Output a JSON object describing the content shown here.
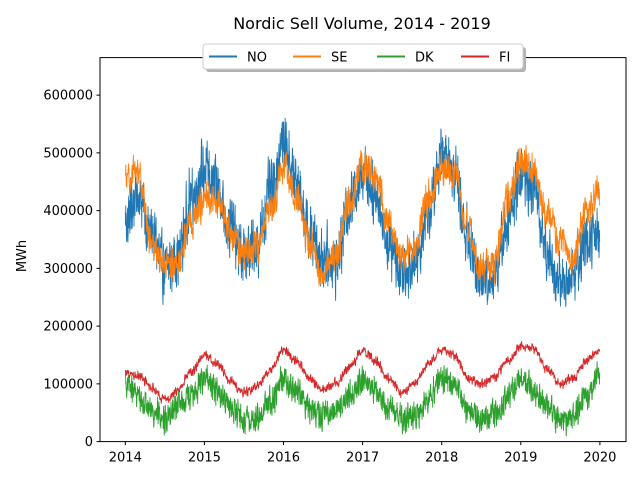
{
  "chart_data": {
    "type": "line",
    "title": "Nordic Sell Volume,  2014 - 2019",
    "xlabel": "",
    "ylabel": "MWh",
    "xlim": [
      2013.68,
      2020.33
    ],
    "ylim": [
      0,
      665000
    ],
    "x_ticks": [
      "2014",
      "2015",
      "2016",
      "2017",
      "2018",
      "2019",
      "2020"
    ],
    "y_ticks": [
      "0",
      "100000",
      "200000",
      "300000",
      "400000",
      "500000",
      "600000"
    ],
    "grid": false,
    "legend_placement": "top-center",
    "frequency": "daily (2014-01-01 to 2019-12-31)",
    "x": [
      "2014-01-01",
      "2014-03-01",
      "2014-05-01",
      "2014-07-01",
      "2014-09-01",
      "2014-11-01",
      "2015-01-01",
      "2015-03-01",
      "2015-05-01",
      "2015-07-01",
      "2015-09-01",
      "2015-11-01",
      "2016-01-01",
      "2016-03-01",
      "2016-05-01",
      "2016-07-01",
      "2016-09-01",
      "2016-11-01",
      "2017-01-01",
      "2017-03-01",
      "2017-05-01",
      "2017-07-01",
      "2017-09-01",
      "2017-11-01",
      "2018-01-01",
      "2018-03-01",
      "2018-05-01",
      "2018-07-01",
      "2018-09-01",
      "2018-11-01",
      "2019-01-01",
      "2019-03-01",
      "2019-05-01",
      "2019-07-01",
      "2019-09-01",
      "2019-11-01",
      "2019-12-31"
    ],
    "series": [
      {
        "name": "NO",
        "color": "#1f77b4",
        "noise": 60000,
        "smooth_weight": 0.35,
        "values": [
          380000,
          430000,
          360000,
          300000,
          320000,
          420000,
          470000,
          440000,
          370000,
          320000,
          340000,
          430000,
          520000,
          450000,
          360000,
          320000,
          310000,
          410000,
          470000,
          430000,
          340000,
          300000,
          310000,
          400000,
          490000,
          470000,
          350000,
          280000,
          290000,
          380000,
          460000,
          440000,
          330000,
          270000,
          290000,
          350000,
          360000
        ]
      },
      {
        "name": "SE",
        "color": "#ff7f0e",
        "noise": 38000,
        "smooth_weight": 0.5,
        "values": [
          450000,
          470000,
          350000,
          300000,
          310000,
          380000,
          420000,
          420000,
          360000,
          330000,
          340000,
          400000,
          470000,
          430000,
          340000,
          290000,
          330000,
          410000,
          480000,
          460000,
          380000,
          320000,
          340000,
          420000,
          480000,
          460000,
          370000,
          300000,
          310000,
          420000,
          480000,
          470000,
          400000,
          350000,
          320000,
          400000,
          430000
        ]
      },
      {
        "name": "DK",
        "color": "#2ca02c",
        "noise": 28000,
        "smooth_weight": 0.35,
        "values": [
          100000,
          80000,
          55000,
          40000,
          60000,
          80000,
          110000,
          90000,
          60000,
          35000,
          40000,
          70000,
          110000,
          90000,
          60000,
          45000,
          55000,
          80000,
          110000,
          90000,
          60000,
          40000,
          45000,
          75000,
          110000,
          100000,
          60000,
          40000,
          45000,
          75000,
          110000,
          90000,
          60000,
          35000,
          45000,
          80000,
          120000
        ]
      },
      {
        "name": "FI",
        "color": "#d62728",
        "noise": 12000,
        "smooth_weight": 0.6,
        "values": [
          120000,
          115000,
          95000,
          75000,
          90000,
          120000,
          150000,
          135000,
          105000,
          85000,
          95000,
          125000,
          160000,
          140000,
          110000,
          90000,
          100000,
          130000,
          155000,
          140000,
          110000,
          85000,
          100000,
          135000,
          160000,
          150000,
          110000,
          100000,
          110000,
          140000,
          165000,
          160000,
          125000,
          100000,
          110000,
          140000,
          155000
        ]
      }
    ]
  }
}
